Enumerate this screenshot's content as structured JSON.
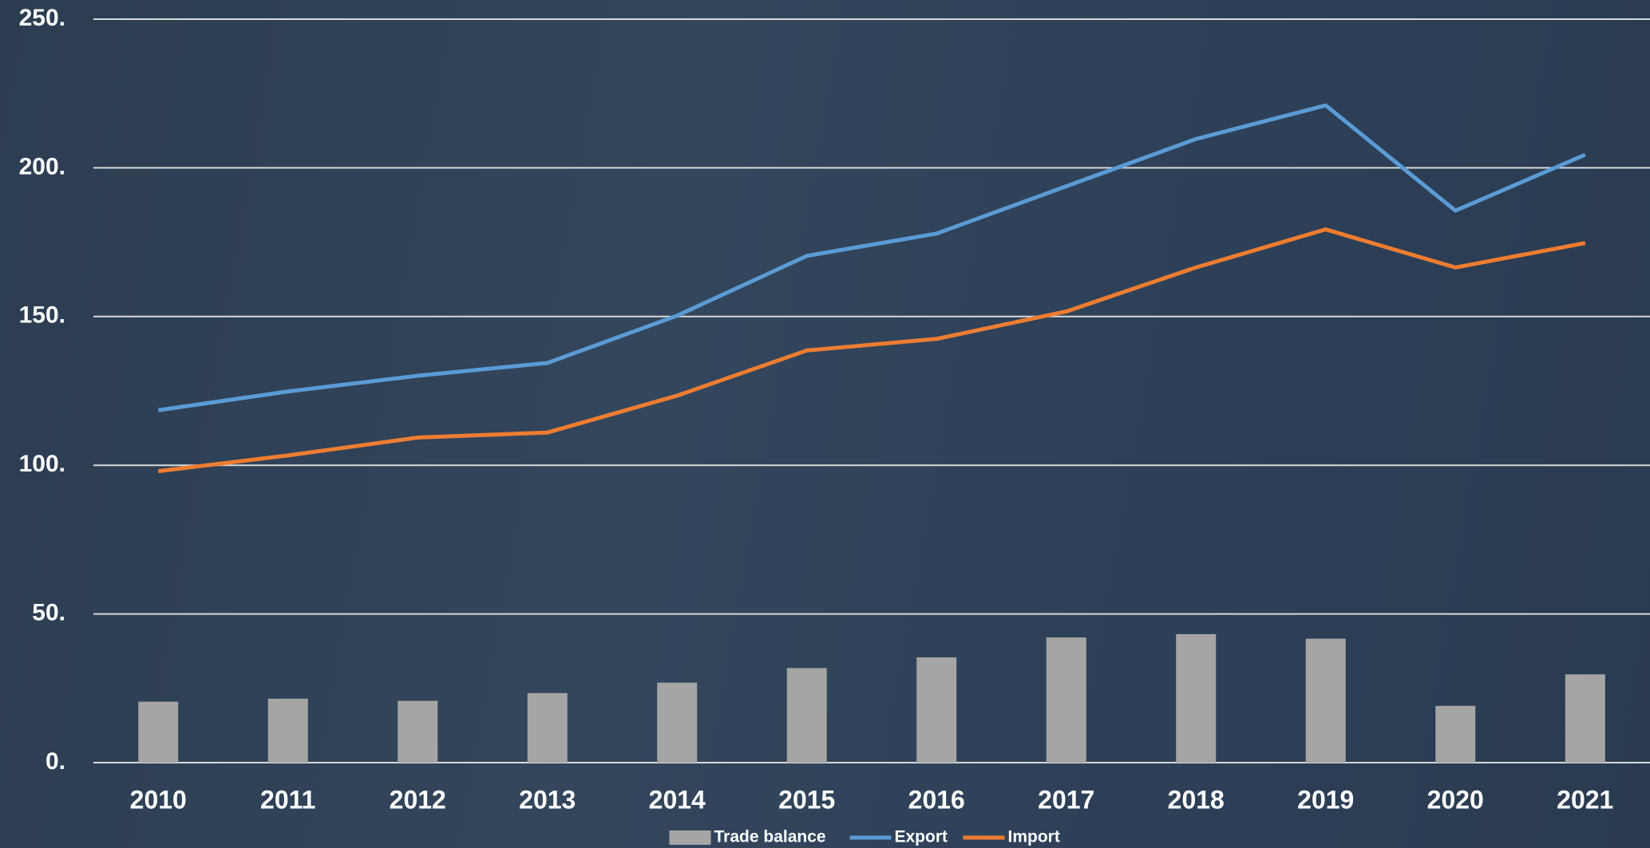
{
  "chart_data": {
    "type": "combo",
    "categories": [
      "2010",
      "2011",
      "2012",
      "2013",
      "2014",
      "2015",
      "2016",
      "2017",
      "2018",
      "2019",
      "2020",
      "2021"
    ],
    "series": [
      {
        "name": "Trade balance",
        "type": "bar",
        "color": "#a5a5a5",
        "values": [
          20.5,
          21.5,
          20.8,
          23.4,
          26.9,
          31.8,
          35.4,
          42.1,
          43.2,
          41.7,
          19.1,
          29.7
        ]
      },
      {
        "name": "Export",
        "type": "line",
        "color": "#5b9bd5",
        "values": [
          118.5,
          124.8,
          130.1,
          134.4,
          150.3,
          170.4,
          177.9,
          193.8,
          209.7,
          221.0,
          185.6,
          204.4
        ]
      },
      {
        "name": "Import",
        "type": "line",
        "color": "#ed7d31",
        "values": [
          98.0,
          103.3,
          109.3,
          111.0,
          123.4,
          138.6,
          142.5,
          151.7,
          166.5,
          179.3,
          166.5,
          174.7
        ]
      }
    ],
    "ylim": [
      0,
      250
    ],
    "yticks": [
      {
        "value": 0,
        "label": "0."
      },
      {
        "value": 50,
        "label": "50."
      },
      {
        "value": 100,
        "label": "100."
      },
      {
        "value": 150,
        "label": "150."
      },
      {
        "value": 200,
        "label": "200."
      },
      {
        "value": 250,
        "label": "250."
      }
    ],
    "grid": true,
    "legend": "bottom"
  }
}
